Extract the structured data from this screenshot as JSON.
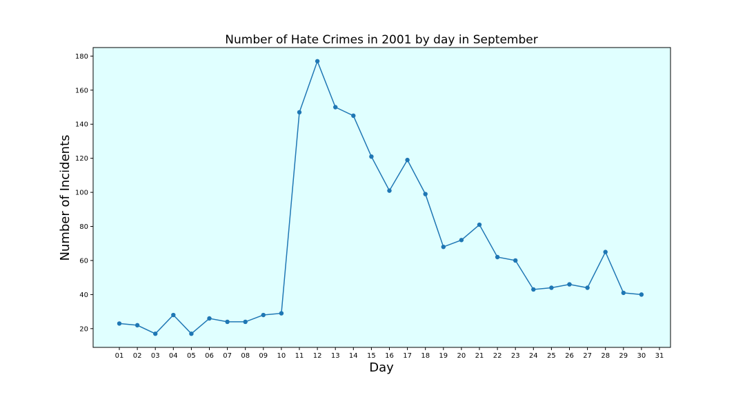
{
  "chart_data": {
    "type": "line",
    "title": "Number of Hate Crimes in 2001 by day in September",
    "xlabel": "Day",
    "ylabel": "Number of Incidents",
    "x_ticks": [
      "01",
      "02",
      "03",
      "04",
      "05",
      "06",
      "07",
      "08",
      "09",
      "10",
      "11",
      "12",
      "13",
      "14",
      "15",
      "16",
      "17",
      "18",
      "19",
      "20",
      "21",
      "22",
      "23",
      "24",
      "25",
      "26",
      "27",
      "28",
      "29",
      "30",
      "31"
    ],
    "x": [
      "01",
      "02",
      "03",
      "04",
      "05",
      "06",
      "07",
      "08",
      "09",
      "10",
      "11",
      "12",
      "13",
      "14",
      "15",
      "16",
      "17",
      "18",
      "19",
      "20",
      "21",
      "22",
      "23",
      "24",
      "25",
      "26",
      "27",
      "28",
      "29",
      "30"
    ],
    "values": [
      23,
      22,
      17,
      28,
      17,
      26,
      24,
      24,
      28,
      29,
      147,
      177,
      150,
      145,
      121,
      101,
      119,
      99,
      68,
      72,
      81,
      62,
      60,
      43,
      44,
      46,
      44,
      65,
      41,
      40
    ],
    "y_ticks": [
      20,
      40,
      60,
      80,
      100,
      120,
      140,
      160,
      180
    ],
    "ylim": [
      9,
      185
    ],
    "grid": false,
    "colors": {
      "line": "#1f77b4",
      "plot_background": "#e0ffff",
      "axes_edge": "#000000"
    }
  }
}
